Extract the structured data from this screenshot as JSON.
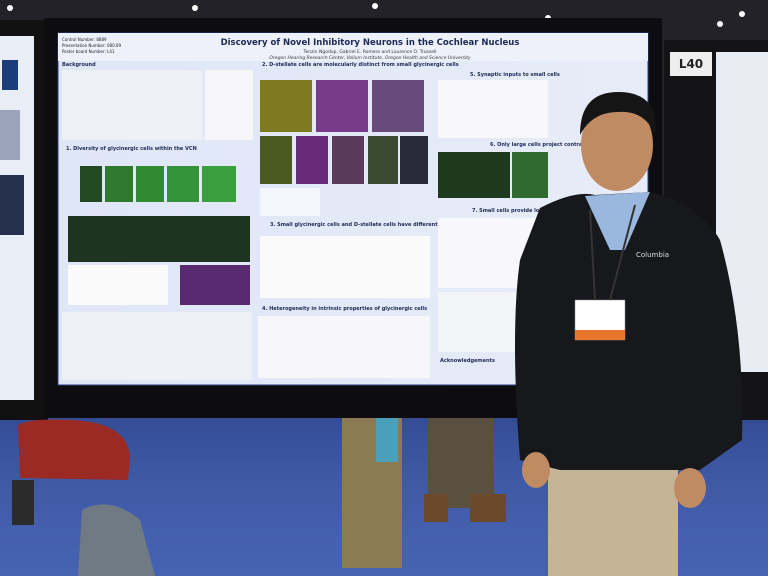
{
  "poster": {
    "control_number": "Control Number: 8889",
    "presentation_number": "Presentation Number: 080.09",
    "board_number": "Poster board Number: L41",
    "title": "Discovery of Novel Inhibitory Neurons in the Cochlear Nucleus",
    "authors": "Tenzin Ngodup, Gabriel E. Romero and Laurence O. Trussell",
    "affiliation": "Oregon Hearing Research Center, Vollum Institute, Oregon Health and Science University",
    "sections": [
      "Background",
      "1. Diversity of glycinergic cells within the VCN",
      "2. D-stellate cells are molecularly distinct from small glycinergic cells",
      "3. Small glycinergic cells and D-stellate cells have different dendritic morphology",
      "4. Heterogeneity in intrinsic properties of glycinergic cells",
      "5. Synaptic inputs to small cells",
      "6. Only large cells project contralaterally",
      "7. Small cells provide local inhibition within the VCN",
      "Acknowledgements"
    ]
  },
  "neighbor_board": "L40",
  "jacket_logo": "Columbia"
}
